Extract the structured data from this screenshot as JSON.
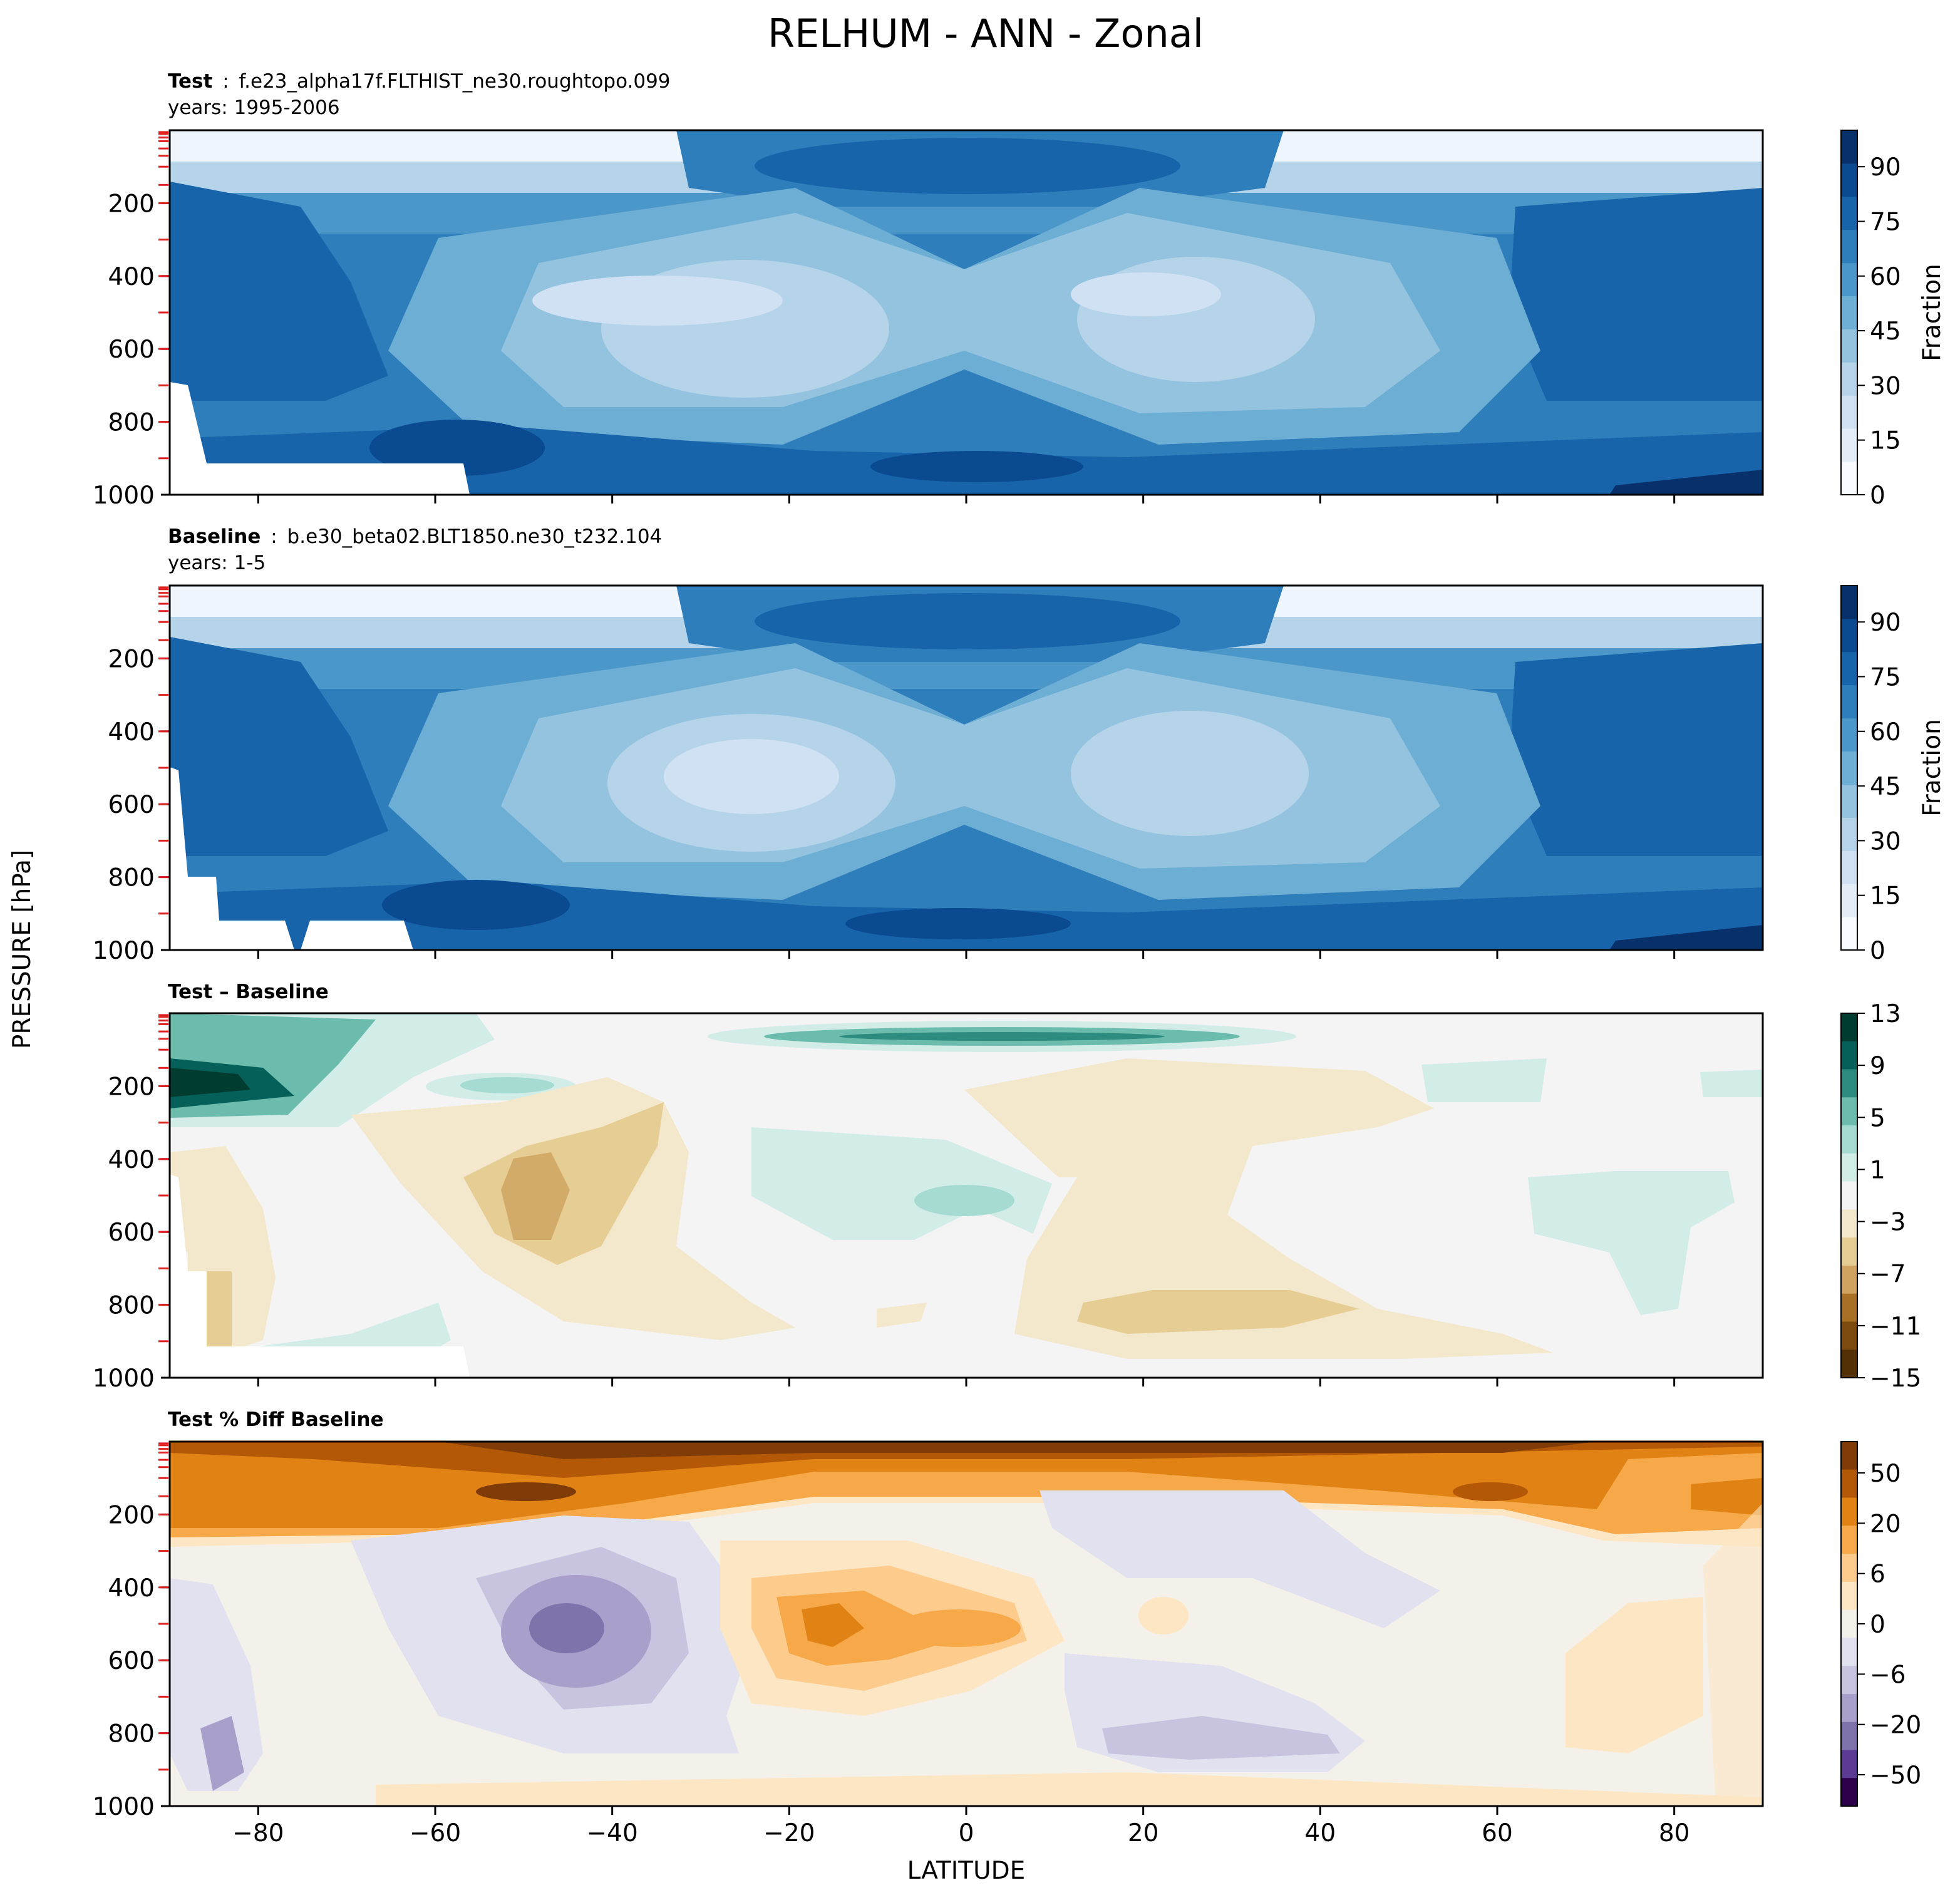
{
  "figure": {
    "title": "RELHUM - ANN - Zonal",
    "ylabel": "PRESSURE [hPa]",
    "xlabel": "LATITUDE"
  },
  "colors": {
    "blues": [
      "#f7fbff",
      "#e3eef9",
      "#cfe1f2",
      "#b5d4e9",
      "#93c3df",
      "#6daed5",
      "#4b97c9",
      "#2f7ebc",
      "#1864aa",
      "#0a4a90",
      "#08306b"
    ],
    "diff": [
      "#543005",
      "#7d4a0d",
      "#a86f27",
      "#cfa460",
      "#e6cd93",
      "#f3e8cc",
      "#f4f4f4",
      "#d2ece8",
      "#a5dbd0",
      "#6cbcad",
      "#2e8b7f",
      "#06605a",
      "#003c30"
    ],
    "pct": [
      "#7f3b08",
      "#b35806",
      "#e08214",
      "#f7a848",
      "#fdcb8c",
      "#fde6c3",
      "#f4f1ea",
      "#e2e1ef",
      "#c8c4df",
      "#a8a0cb",
      "#8073ac",
      "#5b3a93",
      "#2d004b"
    ]
  },
  "chart_data": [
    {
      "type": "heatmap",
      "label": "Test",
      "case": "f.e23_alpha17f.FLTHIST_ne30.roughtopo.099",
      "years": "years: 1995-2006",
      "xlim": [
        -90,
        90
      ],
      "ylim": [
        1000,
        0
      ],
      "x_ticks": [
        -80,
        -60,
        -40,
        -20,
        0,
        20,
        40,
        60,
        80
      ],
      "y_ticks": [
        200,
        400,
        600,
        800,
        1000
      ],
      "colorbar": {
        "label": "Fraction",
        "ticks": [
          0,
          15,
          30,
          45,
          60,
          75,
          90
        ],
        "range": [
          0,
          100
        ]
      }
    },
    {
      "type": "heatmap",
      "label": "Baseline",
      "case": "b.e30_beta02.BLT1850.ne30_t232.104",
      "years": "years: 1-5",
      "xlim": [
        -90,
        90
      ],
      "ylim": [
        1000,
        0
      ],
      "x_ticks": [
        -80,
        -60,
        -40,
        -20,
        0,
        20,
        40,
        60,
        80
      ],
      "y_ticks": [
        200,
        400,
        600,
        800,
        1000
      ],
      "colorbar": {
        "label": "Fraction",
        "ticks": [
          0,
          15,
          30,
          45,
          60,
          75,
          90
        ],
        "range": [
          0,
          100
        ]
      }
    },
    {
      "type": "heatmap",
      "label": "Test – Baseline",
      "xlim": [
        -90,
        90
      ],
      "ylim": [
        1000,
        0
      ],
      "x_ticks": [
        -80,
        -60,
        -40,
        -20,
        0,
        20,
        40,
        60,
        80
      ],
      "y_ticks": [
        200,
        400,
        600,
        800,
        1000
      ],
      "colorbar": {
        "label": "",
        "ticks": [
          13,
          9,
          5,
          1,
          -3,
          -7,
          -11,
          -15
        ],
        "range": [
          -15,
          13
        ]
      }
    },
    {
      "type": "heatmap",
      "label": "Test % Diff Baseline",
      "xlim": [
        -90,
        90
      ],
      "ylim": [
        1000,
        0
      ],
      "x_ticks": [
        -80,
        -60,
        -40,
        -20,
        0,
        20,
        40,
        60,
        80
      ],
      "y_ticks": [
        200,
        400,
        600,
        800,
        1000
      ],
      "colorbar": {
        "label": "",
        "ticks": [
          50,
          20,
          6,
          0,
          -6,
          -20,
          -50
        ]
      }
    }
  ]
}
